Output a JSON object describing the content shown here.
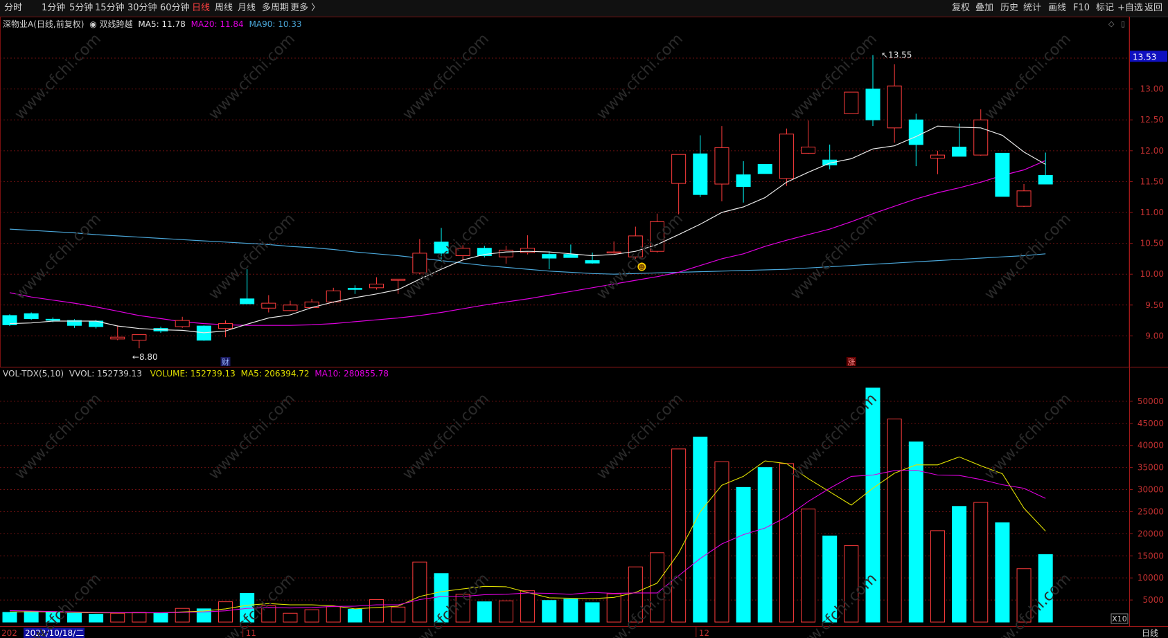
{
  "toolbar": {
    "periods": [
      "分时",
      "1分钟",
      "5分钟",
      "15分钟",
      "30分钟",
      "60分钟",
      "日线",
      "周线",
      "月线",
      "多周期",
      "更多 〉"
    ],
    "active_period": "日线",
    "actions": [
      "复权",
      "叠加",
      "历史",
      "统计",
      "画线",
      "F10",
      "标记",
      "+自选",
      "返回"
    ]
  },
  "price_panel": {
    "stock_title": "深物业A(日线,前复权)",
    "indicator_name": "双线跨越",
    "ma5_label": "MA5: 11.78",
    "ma20_label": "MA20: 11.84",
    "ma90_label": "MA90: 10.33",
    "current_price_tag": "13.53",
    "high_marker": "13.55",
    "low_marker": "8.80",
    "event_marker_cai": "财",
    "event_marker_zhang": "涨",
    "colors": {
      "up": "#ff3c3c",
      "down": "#00ffff",
      "ma5": "#e8e8e8",
      "ma20": "#e000e0",
      "ma90": "#4aa6d8",
      "grid": "#6a1010"
    }
  },
  "volume_panel": {
    "indicator_name": "VOL-TDX(5,10)",
    "vvol_label": "VVOL: 152739.13",
    "volume_label": "VOLUME: 152739.13",
    "ma5_label": "MA5: 206394.72",
    "ma10_label": "MA10: 280855.78",
    "multiplier": "X10",
    "colors": {
      "ma5": "#e0e000",
      "ma10": "#e000e0"
    }
  },
  "x_axis": {
    "first_label": "202",
    "cursor_date": "2022/10/18/二",
    "month_labels": [
      "11",
      "12"
    ],
    "period_label": "日线"
  },
  "chart_data": [
    {
      "type": "candlestick",
      "title": "深物业A(日线,前复权)",
      "y_ticks": [
        9.0,
        9.5,
        10.0,
        10.5,
        11.0,
        11.5,
        12.0,
        12.5,
        13.0,
        13.5
      ],
      "ylim": [
        8.5,
        14.05
      ],
      "candles": [
        {
          "o": 9.33,
          "h": 9.35,
          "l": 9.16,
          "c": 9.18
        },
        {
          "o": 9.36,
          "h": 9.38,
          "l": 9.26,
          "c": 9.28
        },
        {
          "o": 9.27,
          "h": 9.3,
          "l": 9.22,
          "c": 9.26
        },
        {
          "o": 9.25,
          "h": 9.27,
          "l": 9.13,
          "c": 9.17
        },
        {
          "o": 9.24,
          "h": 9.26,
          "l": 9.12,
          "c": 9.15
        },
        {
          "o": 8.95,
          "h": 9.17,
          "l": 8.93,
          "c": 8.98
        },
        {
          "o": 8.93,
          "h": 9.02,
          "l": 8.8,
          "c": 9.02
        },
        {
          "o": 9.12,
          "h": 9.15,
          "l": 9.05,
          "c": 9.08
        },
        {
          "o": 9.15,
          "h": 9.31,
          "l": 9.13,
          "c": 9.25
        },
        {
          "o": 9.16,
          "h": 9.17,
          "l": 8.92,
          "c": 8.93
        },
        {
          "o": 9.12,
          "h": 9.25,
          "l": 8.98,
          "c": 9.2
        },
        {
          "o": 9.6,
          "h": 10.08,
          "l": 9.52,
          "c": 9.52
        },
        {
          "o": 9.45,
          "h": 9.66,
          "l": 9.38,
          "c": 9.53
        },
        {
          "o": 9.41,
          "h": 9.57,
          "l": 9.4,
          "c": 9.5
        },
        {
          "o": 9.46,
          "h": 9.6,
          "l": 9.45,
          "c": 9.55
        },
        {
          "o": 9.55,
          "h": 9.78,
          "l": 9.53,
          "c": 9.73
        },
        {
          "o": 9.77,
          "h": 9.82,
          "l": 9.68,
          "c": 9.76
        },
        {
          "o": 9.78,
          "h": 9.95,
          "l": 9.75,
          "c": 9.84
        },
        {
          "o": 9.9,
          "h": 9.9,
          "l": 9.68,
          "c": 9.92
        },
        {
          "o": 10.02,
          "h": 10.57,
          "l": 10.0,
          "c": 10.34
        },
        {
          "o": 10.52,
          "h": 10.75,
          "l": 10.2,
          "c": 10.34
        },
        {
          "o": 10.3,
          "h": 10.47,
          "l": 10.22,
          "c": 10.42
        },
        {
          "o": 10.42,
          "h": 10.46,
          "l": 10.27,
          "c": 10.3
        },
        {
          "o": 10.28,
          "h": 10.46,
          "l": 10.17,
          "c": 10.39
        },
        {
          "o": 10.35,
          "h": 10.63,
          "l": 10.32,
          "c": 10.42
        },
        {
          "o": 10.32,
          "h": 10.37,
          "l": 10.08,
          "c": 10.26
        },
        {
          "o": 10.32,
          "h": 10.48,
          "l": 10.27,
          "c": 10.27
        },
        {
          "o": 10.22,
          "h": 10.35,
          "l": 10.17,
          "c": 10.18
        },
        {
          "o": 10.35,
          "h": 10.53,
          "l": 10.33,
          "c": 10.36
        },
        {
          "o": 10.28,
          "h": 10.77,
          "l": 10.25,
          "c": 10.62
        },
        {
          "o": 10.37,
          "h": 10.98,
          "l": 10.35,
          "c": 10.85
        },
        {
          "o": 11.47,
          "h": 11.94,
          "l": 10.97,
          "c": 11.94
        },
        {
          "o": 11.95,
          "h": 12.25,
          "l": 11.25,
          "c": 11.29
        },
        {
          "o": 11.46,
          "h": 12.4,
          "l": 11.18,
          "c": 12.05
        },
        {
          "o": 11.61,
          "h": 11.83,
          "l": 11.16,
          "c": 11.42
        },
        {
          "o": 11.78,
          "h": 11.78,
          "l": 11.63,
          "c": 11.63
        },
        {
          "o": 11.55,
          "h": 12.36,
          "l": 11.43,
          "c": 12.27
        },
        {
          "o": 11.96,
          "h": 12.49,
          "l": 11.95,
          "c": 12.06
        },
        {
          "o": 11.85,
          "h": 12.1,
          "l": 11.7,
          "c": 11.77
        },
        {
          "o": 12.6,
          "h": 12.95,
          "l": 12.6,
          "c": 12.95
        },
        {
          "o": 13.0,
          "h": 13.55,
          "l": 12.4,
          "c": 12.5
        },
        {
          "o": 12.37,
          "h": 13.4,
          "l": 12.13,
          "c": 13.05
        },
        {
          "o": 12.5,
          "h": 12.6,
          "l": 11.75,
          "c": 12.1
        },
        {
          "o": 11.88,
          "h": 12.0,
          "l": 11.62,
          "c": 11.93
        },
        {
          "o": 12.06,
          "h": 12.44,
          "l": 11.91,
          "c": 11.91
        },
        {
          "o": 11.93,
          "h": 12.67,
          "l": 11.92,
          "c": 12.5
        },
        {
          "o": 11.96,
          "h": 11.96,
          "l": 11.26,
          "c": 11.26
        },
        {
          "o": 11.1,
          "h": 11.46,
          "l": 11.09,
          "c": 11.35
        },
        {
          "o": 11.6,
          "h": 11.97,
          "l": 11.46,
          "c": 11.46
        }
      ],
      "ma5": [
        9.2,
        9.21,
        9.24,
        9.24,
        9.24,
        9.16,
        9.12,
        9.1,
        9.09,
        9.05,
        9.08,
        9.19,
        9.29,
        9.34,
        9.46,
        9.55,
        9.62,
        9.68,
        9.75,
        9.92,
        10.08,
        10.23,
        10.32,
        10.36,
        10.37,
        10.36,
        10.33,
        10.3,
        10.32,
        10.37,
        10.48,
        10.64,
        10.81,
        11.0,
        11.09,
        11.24,
        11.49,
        11.65,
        11.8,
        11.87,
        12.03,
        12.08,
        12.23,
        12.4,
        12.38,
        12.37,
        12.25,
        11.98,
        11.78
      ],
      "ma20": [
        9.7,
        9.63,
        9.58,
        9.53,
        9.47,
        9.4,
        9.33,
        9.28,
        9.23,
        9.2,
        9.18,
        9.17,
        9.17,
        9.17,
        9.18,
        9.2,
        9.23,
        9.26,
        9.29,
        9.33,
        9.38,
        9.44,
        9.5,
        9.55,
        9.6,
        9.66,
        9.72,
        9.78,
        9.84,
        9.9,
        9.96,
        10.03,
        10.14,
        10.25,
        10.33,
        10.45,
        10.55,
        10.64,
        10.73,
        10.85,
        10.98,
        11.1,
        11.22,
        11.32,
        11.4,
        11.49,
        11.6,
        11.69,
        11.84
      ],
      "ma90": [
        10.73,
        10.71,
        10.69,
        10.67,
        10.64,
        10.62,
        10.6,
        10.58,
        10.56,
        10.54,
        10.52,
        10.5,
        10.48,
        10.45,
        10.43,
        10.4,
        10.36,
        10.33,
        10.3,
        10.26,
        10.22,
        10.18,
        10.14,
        10.11,
        10.08,
        10.05,
        10.03,
        10.01,
        10.0,
        10.01,
        10.02,
        10.03,
        10.04,
        10.05,
        10.06,
        10.07,
        10.08,
        10.1,
        10.12,
        10.14,
        10.16,
        10.18,
        10.2,
        10.22,
        10.24,
        10.26,
        10.28,
        10.3,
        10.33
      ]
    },
    {
      "type": "bar",
      "title": "VOL-TDX(5,10)",
      "y_ticks": [
        5000,
        10000,
        15000,
        20000,
        25000,
        30000,
        35000,
        40000,
        45000,
        50000
      ],
      "ylim": [
        0,
        55000
      ],
      "unit_multiplier": "X10",
      "volumes": [
        2200,
        2400,
        2200,
        2000,
        1800,
        2000,
        2200,
        2100,
        3100,
        3000,
        4600,
        6500,
        3700,
        2000,
        2800,
        3500,
        2900,
        5100,
        3400,
        13600,
        11000,
        6300,
        4600,
        4800,
        7100,
        4900,
        5200,
        4400,
        6400,
        12500,
        15700,
        39200,
        41900,
        36300,
        30500,
        35000,
        35900,
        25600,
        19500,
        17300,
        53000,
        46000,
        40800,
        20700,
        26200,
        27100,
        22500,
        12100,
        15300
      ],
      "vol_ma5": [
        2300,
        2350,
        2300,
        2200,
        2100,
        2100,
        2100,
        2100,
        2300,
        2500,
        3000,
        3800,
        4200,
        3900,
        3900,
        3700,
        3000,
        3300,
        3600,
        5800,
        6900,
        7500,
        8100,
        8000,
        6700,
        5500,
        5400,
        5300,
        5600,
        6700,
        8800,
        15600,
        25000,
        31000,
        33000,
        36500,
        35900,
        32500,
        29500,
        26500,
        30300,
        33700,
        35600,
        35600,
        37400,
        35400,
        33600,
        25800,
        20600
      ],
      "vol_ma10": [
        2600,
        2500,
        2400,
        2300,
        2200,
        2150,
        2150,
        2100,
        2200,
        2300,
        2550,
        3100,
        3300,
        3200,
        3300,
        3550,
        3600,
        3900,
        3900,
        5100,
        5800,
        5800,
        6200,
        6300,
        6600,
        6500,
        6300,
        6700,
        6500,
        6600,
        6600,
        10500,
        14400,
        17700,
        19800,
        21300,
        23800,
        27300,
        30300,
        33000,
        33300,
        34300,
        34400,
        33300,
        33200,
        32300,
        31100,
        30300,
        28000
      ]
    }
  ]
}
